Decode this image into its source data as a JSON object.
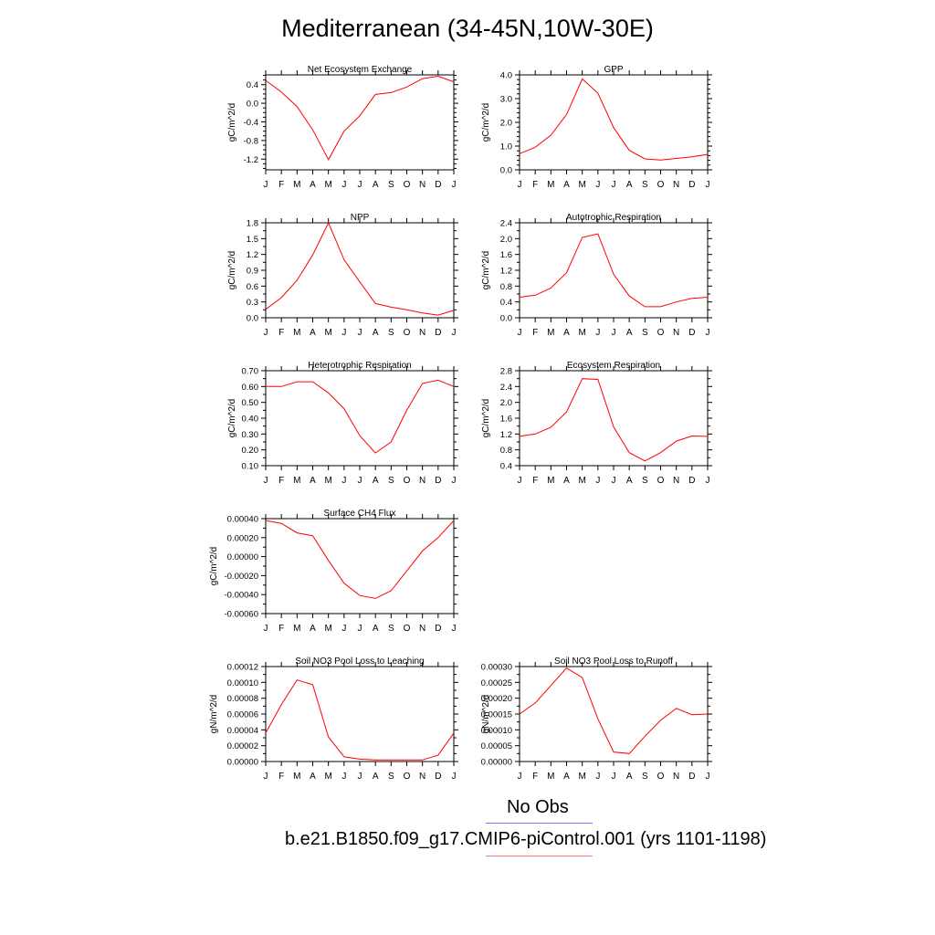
{
  "title": "Mediterranean (34-45N,10W-30E)",
  "legend": {
    "obs_label": "No Obs",
    "model_label": "b.e21.B1850.f09_g17.CMIP6-piControl.001 (yrs 1101-1198)"
  },
  "colors": {
    "model_line": "#ff0000",
    "obs_line": "#7777ff",
    "axis": "#000000"
  },
  "chart_data": [
    {
      "type": "line",
      "title": "Net Ecosystem Exchange",
      "ylabel": "gC/m^2/d",
      "categories": [
        "J",
        "F",
        "M",
        "A",
        "M",
        "J",
        "J",
        "A",
        "S",
        "O",
        "N",
        "D",
        "J"
      ],
      "ylim": [
        -1.43,
        0.61
      ],
      "yticks": [
        {
          "v": 0.4,
          "t": "0.4"
        },
        {
          "v": 0.0,
          "t": "0.0"
        },
        {
          "v": -0.4,
          "t": "-0.4"
        },
        {
          "v": -0.8,
          "t": "-0.8"
        },
        {
          "v": -1.2,
          "t": "-1.2"
        }
      ],
      "yminor": [
        0.6,
        0.5,
        0.3,
        0.2,
        0.1,
        -0.1,
        -0.2,
        -0.3,
        -0.5,
        -0.6,
        -0.7,
        -0.9,
        -1.0,
        -1.1,
        -1.3,
        -1.4
      ],
      "series": [
        {
          "values": [
            0.49,
            0.24,
            -0.07,
            -0.57,
            -1.21,
            -0.6,
            -0.27,
            0.19,
            0.23,
            0.35,
            0.53,
            0.58,
            0.46
          ]
        }
      ]
    },
    {
      "type": "line",
      "title": "GPP",
      "ylabel": "gC/m^2/d",
      "categories": [
        "J",
        "F",
        "M",
        "A",
        "M",
        "J",
        "J",
        "A",
        "S",
        "O",
        "N",
        "D",
        "J"
      ],
      "ylim": [
        0.0,
        4.0
      ],
      "yticks": [
        {
          "v": 4.0,
          "t": "4.0"
        },
        {
          "v": 3.0,
          "t": "3.0"
        },
        {
          "v": 2.0,
          "t": "2.0"
        },
        {
          "v": 1.0,
          "t": "1.0"
        },
        {
          "v": 0.0,
          "t": "0.0"
        }
      ],
      "yminor": [
        3.8,
        3.6,
        3.4,
        3.2,
        2.8,
        2.6,
        2.4,
        2.2,
        1.8,
        1.6,
        1.4,
        1.2,
        0.8,
        0.6,
        0.4,
        0.2
      ],
      "series": [
        {
          "values": [
            0.68,
            0.95,
            1.46,
            2.33,
            3.83,
            3.23,
            1.78,
            0.82,
            0.46,
            0.41,
            0.48,
            0.55,
            0.65
          ]
        }
      ]
    },
    {
      "type": "line",
      "title": "NPP",
      "ylabel": "gC/m^2/d",
      "categories": [
        "J",
        "F",
        "M",
        "A",
        "M",
        "J",
        "J",
        "A",
        "S",
        "O",
        "N",
        "D",
        "J"
      ],
      "ylim": [
        0.0,
        1.8
      ],
      "yticks": [
        {
          "v": 1.8,
          "t": "1.8"
        },
        {
          "v": 1.5,
          "t": "1.5"
        },
        {
          "v": 1.2,
          "t": "1.2"
        },
        {
          "v": 0.9,
          "t": "0.9"
        },
        {
          "v": 0.6,
          "t": "0.6"
        },
        {
          "v": 0.3,
          "t": "0.3"
        },
        {
          "v": 0.0,
          "t": "0.0"
        }
      ],
      "yminor": [
        1.65,
        1.35,
        1.05,
        0.75,
        0.45,
        0.15
      ],
      "series": [
        {
          "values": [
            0.16,
            0.38,
            0.71,
            1.19,
            1.8,
            1.1,
            0.68,
            0.27,
            0.2,
            0.15,
            0.09,
            0.05,
            0.14
          ]
        }
      ]
    },
    {
      "type": "line",
      "title": "Autotrophic Respiration",
      "ylabel": "gC/m^2/d",
      "categories": [
        "J",
        "F",
        "M",
        "A",
        "M",
        "J",
        "J",
        "A",
        "S",
        "O",
        "N",
        "D",
        "J"
      ],
      "ylim": [
        0.0,
        2.4
      ],
      "yticks": [
        {
          "v": 2.4,
          "t": "2.4"
        },
        {
          "v": 2.0,
          "t": "2.0"
        },
        {
          "v": 1.6,
          "t": "1.6"
        },
        {
          "v": 1.2,
          "t": "1.2"
        },
        {
          "v": 0.8,
          "t": "0.8"
        },
        {
          "v": 0.4,
          "t": "0.4"
        },
        {
          "v": 0.0,
          "t": "0.0"
        }
      ],
      "yminor": [
        2.2,
        1.8,
        1.4,
        1.0,
        0.6,
        0.2
      ],
      "series": [
        {
          "values": [
            0.52,
            0.57,
            0.75,
            1.14,
            2.03,
            2.12,
            1.1,
            0.55,
            0.28,
            0.28,
            0.4,
            0.49,
            0.52
          ]
        }
      ]
    },
    {
      "type": "line",
      "title": "Heterotrophic Respiration",
      "ylabel": "gC/m^2/d",
      "categories": [
        "J",
        "F",
        "M",
        "A",
        "M",
        "J",
        "J",
        "A",
        "S",
        "O",
        "N",
        "D",
        "J"
      ],
      "ylim": [
        0.1,
        0.7
      ],
      "yticks": [
        {
          "v": 0.7,
          "t": "0.70"
        },
        {
          "v": 0.6,
          "t": "0.60"
        },
        {
          "v": 0.5,
          "t": "0.50"
        },
        {
          "v": 0.4,
          "t": "0.40"
        },
        {
          "v": 0.3,
          "t": "0.30"
        },
        {
          "v": 0.2,
          "t": "0.20"
        },
        {
          "v": 0.1,
          "t": "0.10"
        }
      ],
      "yminor": [
        0.65,
        0.55,
        0.45,
        0.35,
        0.25,
        0.15
      ],
      "series": [
        {
          "values": [
            0.6,
            0.6,
            0.63,
            0.63,
            0.56,
            0.46,
            0.29,
            0.18,
            0.25,
            0.45,
            0.62,
            0.64,
            0.6
          ]
        }
      ]
    },
    {
      "type": "line",
      "title": "Ecosystem Respiration",
      "ylabel": "gC/m^2/d",
      "categories": [
        "J",
        "F",
        "M",
        "A",
        "M",
        "J",
        "J",
        "A",
        "S",
        "O",
        "N",
        "D",
        "J"
      ],
      "ylim": [
        0.4,
        2.8
      ],
      "yticks": [
        {
          "v": 2.8,
          "t": "2.8"
        },
        {
          "v": 2.4,
          "t": "2.4"
        },
        {
          "v": 2.0,
          "t": "2.0"
        },
        {
          "v": 1.6,
          "t": "1.6"
        },
        {
          "v": 1.2,
          "t": "1.2"
        },
        {
          "v": 0.8,
          "t": "0.8"
        },
        {
          "v": 0.4,
          "t": "0.4"
        }
      ],
      "yminor": [
        2.6,
        2.2,
        1.8,
        1.4,
        1.0,
        0.6
      ],
      "series": [
        {
          "values": [
            1.14,
            1.2,
            1.37,
            1.76,
            2.6,
            2.58,
            1.38,
            0.73,
            0.52,
            0.73,
            1.02,
            1.15,
            1.14
          ]
        }
      ]
    },
    {
      "type": "line",
      "title": "Surface CH4 Flux",
      "ylabel": "gC/m^2/d",
      "categories": [
        "J",
        "F",
        "M",
        "A",
        "M",
        "J",
        "J",
        "A",
        "S",
        "O",
        "N",
        "D",
        "J"
      ],
      "ylim": [
        -0.0006,
        0.0004
      ],
      "yticks": [
        {
          "v": 0.0004,
          "t": "0.00040"
        },
        {
          "v": 0.0002,
          "t": "0.00020"
        },
        {
          "v": 0.0,
          "t": "0.00000"
        },
        {
          "v": -0.0002,
          "t": "-0.00020"
        },
        {
          "v": -0.0004,
          "t": "-0.00040"
        },
        {
          "v": -0.0006,
          "t": "-0.00060"
        }
      ],
      "yminor": [
        0.0003,
        0.0001,
        -0.0001,
        -0.0003,
        -0.0005
      ],
      "series": [
        {
          "values": [
            0.00038,
            0.00035,
            0.00025,
            0.00022,
            -4e-05,
            -0.00028,
            -0.00041,
            -0.00044,
            -0.00036,
            -0.00015,
            6e-05,
            0.0002,
            0.00038
          ]
        }
      ]
    },
    {
      "type": "line",
      "title": "Soil NO3 Pool Loss to Leaching",
      "ylabel": "gN/m^2/d",
      "categories": [
        "J",
        "F",
        "M",
        "A",
        "M",
        "J",
        "J",
        "A",
        "S",
        "O",
        "N",
        "D",
        "J"
      ],
      "ylim": [
        0.0,
        0.00012
      ],
      "yticks": [
        {
          "v": 0.00012,
          "t": "0.00012"
        },
        {
          "v": 0.0001,
          "t": "0.00010"
        },
        {
          "v": 8e-05,
          "t": "0.00008"
        },
        {
          "v": 6e-05,
          "t": "0.00006"
        },
        {
          "v": 4e-05,
          "t": "0.00004"
        },
        {
          "v": 2e-05,
          "t": "0.00002"
        },
        {
          "v": 0.0,
          "t": "0.00000"
        }
      ],
      "yminor": [
        0.00011,
        9e-05,
        7e-05,
        5e-05,
        3e-05,
        1e-05
      ],
      "series": [
        {
          "values": [
            3.6e-05,
            7.2e-05,
            0.000103,
            9.7e-05,
            3.1e-05,
            6e-06,
            3e-06,
            2e-06,
            2e-06,
            2e-06,
            2e-06,
            8e-06,
            3.6e-05
          ]
        }
      ]
    },
    {
      "type": "line",
      "title": "Soil NO3 Pool Loss to Runoff",
      "ylabel": "gN/m^2/d",
      "categories": [
        "J",
        "F",
        "M",
        "A",
        "M",
        "J",
        "J",
        "A",
        "S",
        "O",
        "N",
        "D",
        "J"
      ],
      "ylim": [
        0.0,
        0.0003
      ],
      "yticks": [
        {
          "v": 0.0003,
          "t": "0.00030"
        },
        {
          "v": 0.00025,
          "t": "0.00025"
        },
        {
          "v": 0.0002,
          "t": "0.00020"
        },
        {
          "v": 0.00015,
          "t": "0.00015"
        },
        {
          "v": 0.0001,
          "t": "0.00010"
        },
        {
          "v": 5e-05,
          "t": "0.00005"
        },
        {
          "v": 0.0,
          "t": "0.00000"
        }
      ],
      "yminor": [
        0.000275,
        0.000225,
        0.000175,
        0.000125,
        7.5e-05,
        2.5e-05
      ],
      "series": [
        {
          "values": [
            0.00015,
            0.000185,
            0.00024,
            0.000295,
            0.000265,
            0.000135,
            3e-05,
            2.5e-05,
            8e-05,
            0.00013,
            0.000168,
            0.000148,
            0.00015
          ]
        }
      ]
    }
  ]
}
